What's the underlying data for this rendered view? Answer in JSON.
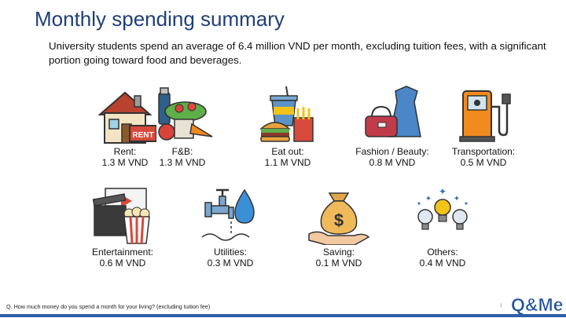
{
  "title": "Monthly spending summary",
  "subtitle": "University students spend an average of 6.4 million VND per month, excluding tuition fees, with a significant portion going toward food and beverages.",
  "categories": [
    {
      "label": "Rent:",
      "value": "1.3 M VND",
      "icon": "house-rent-icon",
      "sign": "RENT"
    },
    {
      "label": "F&B:",
      "value": "1.3 M VND",
      "icon": "groceries-icon"
    },
    {
      "label": "Eat out:",
      "value": "1.1 M VND",
      "icon": "fast-food-icon"
    },
    {
      "label": "Fashion / Beauty:",
      "value": "0.8 M VND",
      "icon": "handbag-dress-icon"
    },
    {
      "label": "Transportation:",
      "value": "0.5 M VND",
      "icon": "fuel-pump-icon"
    },
    {
      "label": "Entertainment:",
      "value": "0.6 M VND",
      "icon": "popcorn-clapperboard-icon"
    },
    {
      "label": "Utilities:",
      "value": "0.3 M VND",
      "icon": "water-tap-icon"
    },
    {
      "label": "Saving:",
      "value": "0.1 M VND",
      "icon": "money-bag-hand-icon",
      "symbol": "$"
    },
    {
      "label": "Others:",
      "value": "0.4 M VND",
      "icon": "light-bulbs-icon"
    }
  ],
  "footer": {
    "question": "Q. How much money do you spend a month for your living? (excluding tuition fee)",
    "page_number": "1",
    "logo_text": "Q&Me"
  },
  "colors": {
    "title": "#1f3f78",
    "accent_orange": "#f28b1e",
    "footer_bar": "#2f5da8",
    "logo_blue": "#1b4fa0"
  }
}
